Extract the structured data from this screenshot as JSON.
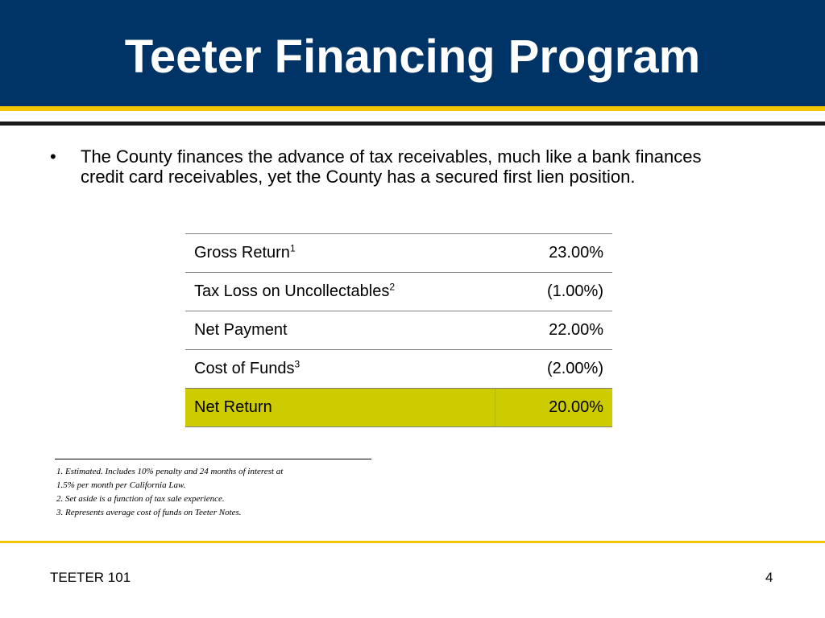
{
  "slide": {
    "title": "Teeter Financing Program",
    "bullet": "The County finances the advance of tax receivables, much like a bank finances credit card receivables, yet the County has a secured first lien position.",
    "bullet_mark": "•"
  },
  "table": {
    "rows": [
      {
        "label": "Gross Return",
        "sup": "1",
        "value": "23.00%"
      },
      {
        "label": "Tax Loss on Uncollectables",
        "sup": "2",
        "value": "(1.00%)"
      },
      {
        "label": "Net Payment",
        "sup": "",
        "value": "22.00%"
      },
      {
        "label": "Cost of Funds",
        "sup": "3",
        "value": "(2.00%)"
      },
      {
        "label": "Net Return",
        "sup": "",
        "value": "20.00%"
      }
    ],
    "highlight_color": "#cccc00"
  },
  "footnotes": [
    "1.  Estimated. Includes 10% penalty and 24 months of interest at",
    "1.5% per month per California Law.",
    "2.  Set aside is a function of tax sale experience.",
    "3.  Represents average cost of funds on Teeter Notes."
  ],
  "footer": {
    "left": "TEETER 101",
    "page_number": "4"
  },
  "colors": {
    "header_bg": "#003366",
    "accent_gold": "#f2c500"
  }
}
